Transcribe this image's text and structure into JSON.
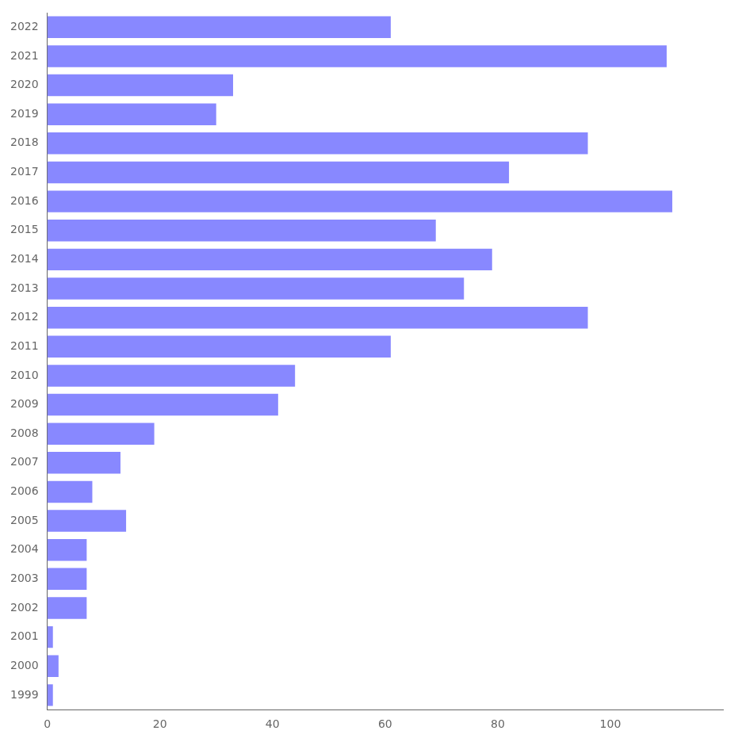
{
  "chart_data": {
    "type": "bar",
    "orientation": "horizontal",
    "categories": [
      "1999",
      "2000",
      "2001",
      "2002",
      "2003",
      "2004",
      "2005",
      "2006",
      "2007",
      "2008",
      "2009",
      "2010",
      "2011",
      "2012",
      "2013",
      "2014",
      "2015",
      "2016",
      "2017",
      "2018",
      "2019",
      "2020",
      "2021",
      "2022"
    ],
    "values": [
      1,
      2,
      1,
      7,
      7,
      7,
      14,
      8,
      13,
      19,
      41,
      44,
      61,
      96,
      74,
      79,
      69,
      111,
      82,
      96,
      30,
      33,
      110,
      61
    ],
    "color": "#8888ff",
    "xlim": [
      0,
      120
    ],
    "xticks": [
      0,
      20,
      40,
      60,
      80,
      100
    ],
    "grid": false
  }
}
